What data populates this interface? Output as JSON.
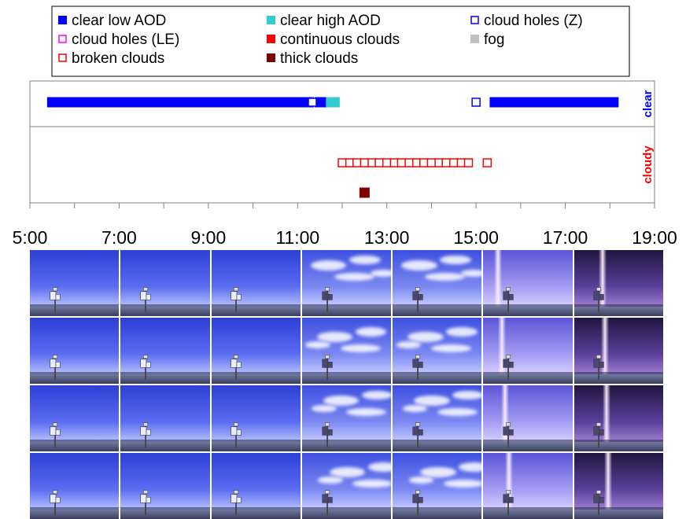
{
  "chart_data": {
    "type": "scatter",
    "title": "",
    "xlabel": "",
    "ylabel": "",
    "x_unit": "hour of day",
    "xlim": [
      5,
      19
    ],
    "x_ticks": [
      5,
      7,
      9,
      11,
      13,
      15,
      17,
      19
    ],
    "x_tick_labels": [
      "5:00",
      "7:00",
      "9:00",
      "11:00",
      "13:00",
      "15:00",
      "17:00",
      "19:00"
    ],
    "legend_position": "top",
    "rows": [
      {
        "key": "clear",
        "label": "clear",
        "color": "#0000ff"
      },
      {
        "key": "cloudy",
        "label": "cloudy",
        "color": "#ff0000"
      }
    ],
    "legend": [
      {
        "label": "clear low AOD",
        "color": "#0000ff",
        "filled": true
      },
      {
        "label": "clear high AOD",
        "color": "#33cccc",
        "filled": true
      },
      {
        "label": "cloud holes (Z)",
        "color": "#0000ff",
        "filled": false
      },
      {
        "label": "cloud holes (LE)",
        "color": "#ff00ff",
        "filled": false
      },
      {
        "label": "continuous clouds",
        "color": "#ff0000",
        "filled": true
      },
      {
        "label": "fog",
        "color": "#c0c0c0",
        "filled": true
      },
      {
        "label": "broken clouds",
        "color": "#ff0000",
        "filled": false
      },
      {
        "label": "thick clouds",
        "color": "#800000",
        "filled": true
      }
    ],
    "series": [
      {
        "name": "clear low AOD",
        "row": "clear",
        "lane": 0,
        "x": [
          5.5,
          5.58,
          5.67,
          5.75,
          5.83,
          5.92,
          6.0,
          6.08,
          6.17,
          6.25,
          6.33,
          6.42,
          6.5,
          6.58,
          6.67,
          6.75,
          6.83,
          6.92,
          7.0,
          7.08,
          7.17,
          7.25,
          7.33,
          7.42,
          7.5,
          7.58,
          7.67,
          7.75,
          7.83,
          7.92,
          8.0,
          8.08,
          8.17,
          8.25,
          8.33,
          8.42,
          8.5,
          8.58,
          8.67,
          8.75,
          8.83,
          8.92,
          9.0,
          9.08,
          9.17,
          9.25,
          9.33,
          9.42,
          9.5,
          9.58,
          9.67,
          9.75,
          9.83,
          9.92,
          10.0,
          10.08,
          10.17,
          10.25,
          10.33,
          10.42,
          10.5,
          10.58,
          10.67,
          10.75,
          10.83,
          10.92,
          11.0,
          11.08,
          11.17,
          11.25,
          11.5,
          11.58,
          11.67,
          15.42,
          15.5,
          15.58,
          15.67,
          15.75,
          15.83,
          15.92,
          16.0,
          16.08,
          16.17,
          16.25,
          16.33,
          16.42,
          16.5,
          16.58,
          16.67,
          16.75,
          16.83,
          16.92,
          17.0,
          17.08,
          17.17,
          17.25,
          17.33,
          17.42,
          17.5,
          17.58,
          17.67,
          17.75,
          17.83,
          17.92,
          18.0,
          18.08
        ]
      },
      {
        "name": "clear high AOD",
        "row": "clear",
        "lane": 0,
        "x": [
          11.75,
          11.83
        ]
      },
      {
        "name": "cloud holes (Z)",
        "row": "clear",
        "lane": 0,
        "x": [
          11.33,
          15.0
        ]
      },
      {
        "name": "broken clouds",
        "row": "cloudy",
        "lane": 0,
        "x": [
          12.0,
          12.17,
          12.33,
          12.5,
          12.67,
          12.83,
          13.0,
          13.17,
          13.33,
          13.5,
          13.67,
          13.83,
          14.0,
          14.17,
          14.33,
          14.5,
          14.67,
          14.83,
          15.25
        ]
      },
      {
        "name": "thick clouds",
        "row": "cloudy",
        "lane": 1,
        "x": [
          12.5
        ]
      }
    ]
  },
  "sky_photos": {
    "columns": 7,
    "rows": 4,
    "column_skies": [
      "clear",
      "clear",
      "clear",
      "broken-clouds",
      "broken-clouds",
      "sun-glare",
      "sun-glare-dark"
    ]
  }
}
